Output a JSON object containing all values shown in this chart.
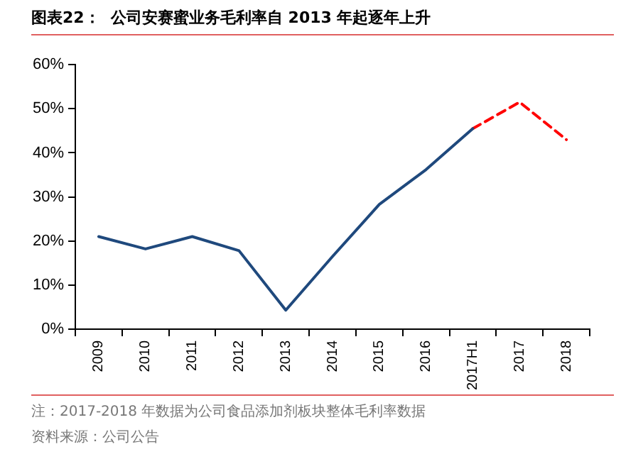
{
  "chart_data": {
    "type": "line",
    "title": "图表22：  公司安赛蜜业务毛利率自 2013 年起逐年上升",
    "categories": [
      "2009",
      "2010",
      "2011",
      "2012",
      "2013",
      "2014",
      "2015",
      "2016",
      "2017H1",
      "2017",
      "2018"
    ],
    "series": [
      {
        "color": "#1f497d",
        "line_style": "solid",
        "values": [
          21,
          18.2,
          21,
          17.8,
          4.3,
          16.5,
          28.3,
          36.2,
          45.5,
          null,
          null
        ]
      },
      {
        "color": "#ff0000",
        "line_style": "dashed",
        "values": [
          null,
          null,
          null,
          null,
          null,
          null,
          null,
          null,
          45.5,
          51.5,
          43
        ]
      }
    ],
    "ylim": [
      0,
      60
    ],
    "yticks": [
      {
        "value": 0,
        "label": "0%"
      },
      {
        "value": 10,
        "label": "10%"
      },
      {
        "value": 20,
        "label": "20%"
      },
      {
        "value": 30,
        "label": "30%"
      },
      {
        "value": 40,
        "label": "40%"
      },
      {
        "value": 50,
        "label": "50%"
      },
      {
        "value": 60,
        "label": "60%"
      }
    ],
    "grid": false,
    "legend": false,
    "marker": "none",
    "annotations": [
      "注：2017-2018 年数据为公司食品添加剂板块整体毛利率数据",
      "资料来源：公司公告"
    ]
  }
}
